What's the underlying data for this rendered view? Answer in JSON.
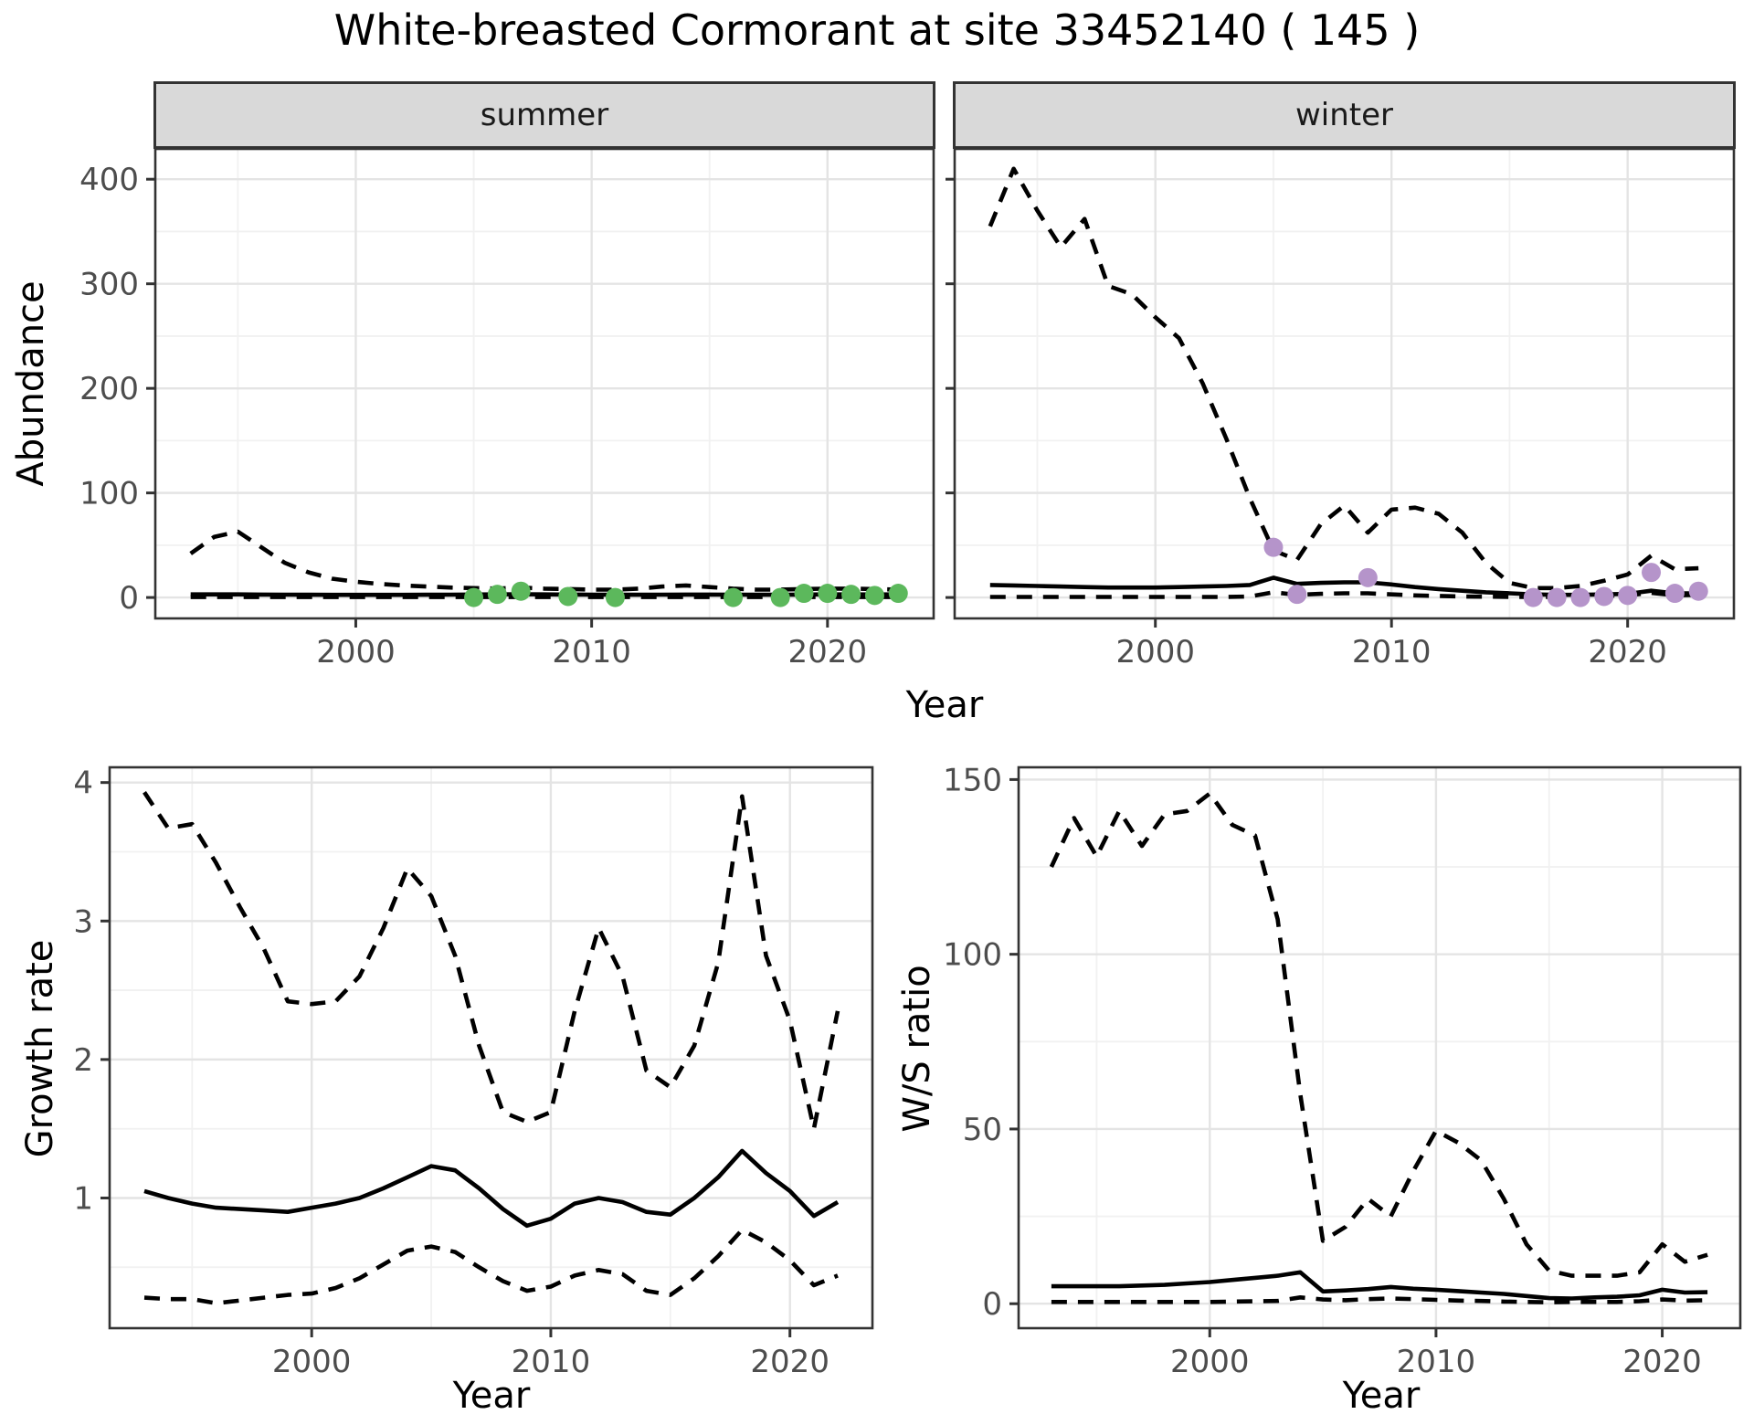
{
  "title": "White-breasted Cormorant at site 33452140 ( 145 )",
  "facets": {
    "summer": "summer",
    "winter": "winter"
  },
  "axis_labels": {
    "abundance": "Abundance",
    "year_top": "Year",
    "growth_rate": "Growth rate",
    "year_growth": "Year",
    "ws_ratio": "W/S ratio",
    "year_ws": "Year"
  },
  "colors": {
    "summer_points": "#5cb85c",
    "winter_points": "#b594ca",
    "line": "#000000",
    "strip_bg": "#d9d9d9",
    "panel_border": "#333333",
    "grid_major": "#e4e4e4",
    "grid_minor": "#f1f1f1",
    "tick_label": "#4d4d4d"
  },
  "chart_data": [
    {
      "id": "summer",
      "type": "line",
      "facet_label": "summer",
      "xlabel": "Year",
      "ylabel": "Abundance",
      "x_domain": [
        1991.5,
        2024.5
      ],
      "y_domain": [
        -20,
        429
      ],
      "x_ticks": [
        2000,
        2010,
        2020
      ],
      "x_minor_ticks": [
        1995,
        2005,
        2015
      ],
      "y_ticks": [
        0,
        100,
        200,
        300,
        400
      ],
      "y_minor_ticks": [
        50,
        150,
        250,
        350,
        450
      ],
      "show_y_tick_labels": true,
      "years": [
        1993,
        1994,
        1995,
        1996,
        1997,
        1998,
        1999,
        2000,
        2001,
        2002,
        2003,
        2004,
        2005,
        2006,
        2007,
        2008,
        2009,
        2010,
        2011,
        2012,
        2013,
        2014,
        2015,
        2016,
        2017,
        2018,
        2019,
        2020,
        2021,
        2022,
        2023
      ],
      "series": [
        {
          "name": "upper_95ci",
          "style": "dashed",
          "values": [
            42,
            58,
            63,
            48,
            33,
            24,
            18,
            15,
            13,
            11.5,
            10.5,
            9.5,
            9,
            8.5,
            9.5,
            8.5,
            8,
            7.5,
            7.5,
            8.5,
            10.5,
            11.5,
            10,
            8.5,
            7.5,
            7.5,
            8,
            8.5,
            8.5,
            8,
            7.5
          ]
        },
        {
          "name": "lower_95ci",
          "style": "dashed",
          "values": [
            0.4,
            0.4,
            0.4,
            0.4,
            0.4,
            0.4,
            0.4,
            0.4,
            0.4,
            0.4,
            0.4,
            0.4,
            0.4,
            0.4,
            0.4,
            0.4,
            0.4,
            0.4,
            0.4,
            0.4,
            0.4,
            0.4,
            0.4,
            0.4,
            0.4,
            0.4,
            0.4,
            0.4,
            0.4,
            0.4,
            0.4
          ]
        },
        {
          "name": "modelled_fit",
          "style": "solid",
          "values": [
            3,
            3,
            3,
            2.8,
            2.7,
            2.6,
            2.5,
            2.5,
            2.5,
            2.5,
            2.6,
            2.7,
            2.9,
            3,
            3.1,
            3,
            2.8,
            2.7,
            2.6,
            2.6,
            2.7,
            2.8,
            2.8,
            2.7,
            2.6,
            2.6,
            2.8,
            3,
            3,
            2.9,
            3
          ]
        },
        {
          "name": "observed_counts",
          "style": "points",
          "color": "#5cb85c",
          "obs_years": [
            2005,
            2006,
            2007,
            2009,
            2011,
            2016,
            2018,
            2019,
            2020,
            2021,
            2022,
            2023
          ],
          "obs_values": [
            0,
            3,
            6,
            1,
            0,
            0,
            0,
            4,
            4,
            3,
            2,
            4
          ]
        }
      ]
    },
    {
      "id": "winter",
      "type": "line",
      "facet_label": "winter",
      "xlabel": "Year",
      "ylabel": "Abundance",
      "x_domain": [
        1991.5,
        2024.5
      ],
      "y_domain": [
        -20,
        429
      ],
      "x_ticks": [
        2000,
        2010,
        2020
      ],
      "x_minor_ticks": [
        1995,
        2005,
        2015
      ],
      "y_ticks": [
        0,
        100,
        200,
        300,
        400
      ],
      "y_minor_ticks": [
        50,
        150,
        250,
        350,
        450
      ],
      "show_y_tick_labels": false,
      "years": [
        1993,
        1994,
        1995,
        1996,
        1997,
        1998,
        1999,
        2000,
        2001,
        2002,
        2003,
        2004,
        2005,
        2006,
        2007,
        2008,
        2009,
        2010,
        2011,
        2012,
        2013,
        2014,
        2015,
        2016,
        2017,
        2018,
        2019,
        2020,
        2021,
        2022,
        2023
      ],
      "series": [
        {
          "name": "upper_95ci",
          "style": "dashed",
          "values": [
            355,
            410,
            370,
            335,
            362,
            298,
            290,
            268,
            248,
            205,
            152,
            95,
            45,
            36,
            70,
            88,
            62,
            84,
            86,
            80,
            62,
            33,
            14,
            9,
            9,
            11,
            16,
            22,
            40,
            27,
            28
          ]
        },
        {
          "name": "lower_95ci",
          "style": "dashed",
          "values": [
            0.5,
            0.5,
            0.5,
            0.5,
            0.5,
            0.5,
            0.5,
            0.5,
            0.5,
            0.5,
            0.5,
            1,
            5,
            2.5,
            3.5,
            4,
            4,
            3,
            2,
            1.5,
            1,
            0.8,
            0.6,
            0.5,
            0.6,
            1,
            1.5,
            2,
            4.5,
            2,
            2.5
          ]
        },
        {
          "name": "modelled_fit",
          "style": "solid",
          "values": [
            12,
            11.5,
            11,
            10.5,
            10,
            9.5,
            9.5,
            9.5,
            10,
            10.5,
            11,
            12,
            19,
            13,
            14,
            14.5,
            14.5,
            12.5,
            10,
            8,
            6.5,
            5,
            4,
            3,
            2.5,
            2.5,
            3,
            3.5,
            6.5,
            4,
            4
          ]
        },
        {
          "name": "observed_counts",
          "style": "points",
          "color": "#b594ca",
          "obs_years": [
            2005,
            2006,
            2009,
            2016,
            2017,
            2018,
            2019,
            2020,
            2021,
            2022,
            2023
          ],
          "obs_values": [
            48,
            3,
            19,
            0,
            0,
            0,
            1,
            2,
            24,
            4,
            6
          ]
        }
      ]
    },
    {
      "id": "growth",
      "type": "line",
      "facet_label": "",
      "xlabel": "Year",
      "ylabel": "Growth rate",
      "x_domain": [
        1991.55,
        2023.45
      ],
      "y_domain": [
        0.06,
        4.11
      ],
      "x_ticks": [
        2000,
        2010,
        2020
      ],
      "x_minor_ticks": [
        1995,
        2005,
        2015
      ],
      "y_ticks": [
        1,
        2,
        3,
        4
      ],
      "y_minor_ticks": [
        0.5,
        1.5,
        2.5,
        3.5
      ],
      "show_y_tick_labels": true,
      "years": [
        1993,
        1994,
        1995,
        1996,
        1997,
        1998,
        1999,
        2000,
        2001,
        2002,
        2003,
        2004,
        2005,
        2006,
        2007,
        2008,
        2009,
        2010,
        2011,
        2012,
        2013,
        2014,
        2015,
        2016,
        2017,
        2018,
        2019,
        2020,
        2021,
        2022
      ],
      "series": [
        {
          "name": "upper_95ci",
          "style": "dashed",
          "values": [
            3.93,
            3.67,
            3.7,
            3.42,
            3.1,
            2.8,
            2.42,
            2.4,
            2.42,
            2.6,
            2.95,
            3.38,
            3.18,
            2.75,
            2.1,
            1.62,
            1.55,
            1.62,
            2.35,
            2.95,
            2.6,
            1.92,
            1.8,
            2.1,
            2.7,
            3.9,
            2.75,
            2.28,
            1.5,
            2.35
          ]
        },
        {
          "name": "lower_95ci",
          "style": "dashed",
          "values": [
            0.28,
            0.27,
            0.27,
            0.24,
            0.26,
            0.28,
            0.3,
            0.31,
            0.35,
            0.42,
            0.52,
            0.62,
            0.65,
            0.61,
            0.5,
            0.4,
            0.33,
            0.36,
            0.44,
            0.48,
            0.45,
            0.33,
            0.3,
            0.42,
            0.58,
            0.77,
            0.68,
            0.55,
            0.37,
            0.44
          ]
        },
        {
          "name": "modelled_fit",
          "style": "solid",
          "values": [
            1.05,
            1.0,
            0.96,
            0.93,
            0.92,
            0.91,
            0.9,
            0.93,
            0.96,
            1.0,
            1.07,
            1.15,
            1.23,
            1.2,
            1.07,
            0.92,
            0.8,
            0.85,
            0.96,
            1.0,
            0.97,
            0.9,
            0.88,
            1.0,
            1.15,
            1.34,
            1.18,
            1.05,
            0.87,
            0.97
          ]
        }
      ]
    },
    {
      "id": "ws",
      "type": "line",
      "facet_label": "",
      "xlabel": "Year",
      "ylabel": "W/S ratio",
      "x_domain": [
        1991.55,
        2023.45
      ],
      "y_domain": [
        -7,
        153.5
      ],
      "x_ticks": [
        2000,
        2010,
        2020
      ],
      "x_minor_ticks": [
        1995,
        2005,
        2015
      ],
      "y_ticks": [
        0,
        50,
        100,
        150
      ],
      "y_minor_ticks": [
        25,
        75,
        125
      ],
      "show_y_tick_labels": true,
      "years": [
        1993,
        1994,
        1995,
        1996,
        1997,
        1998,
        1999,
        2000,
        2001,
        2002,
        2003,
        2004,
        2005,
        2006,
        2007,
        2008,
        2009,
        2010,
        2011,
        2012,
        2013,
        2014,
        2015,
        2016,
        2017,
        2018,
        2019,
        2020,
        2021,
        2022
      ],
      "series": [
        {
          "name": "upper_95ci",
          "style": "dashed",
          "values": [
            125,
            139,
            128,
            141,
            131,
            140,
            141,
            146,
            137,
            134,
            110,
            60,
            18,
            22,
            30,
            25,
            38,
            49.5,
            46,
            41,
            30,
            17,
            9.5,
            8,
            8,
            8,
            9,
            17,
            12,
            14
          ]
        },
        {
          "name": "lower_95ci",
          "style": "dashed",
          "values": [
            0.5,
            0.5,
            0.5,
            0.5,
            0.5,
            0.5,
            0.5,
            0.5,
            0.6,
            0.7,
            0.8,
            1.8,
            1.2,
            1.0,
            1.3,
            1.5,
            1.3,
            1.1,
            0.9,
            0.8,
            0.6,
            0.5,
            0.4,
            0.5,
            0.5,
            0.5,
            0.7,
            1.2,
            0.9,
            1.0
          ]
        },
        {
          "name": "modelled_fit",
          "style": "solid",
          "values": [
            5,
            5,
            5,
            5,
            5.2,
            5.4,
            5.8,
            6.2,
            6.8,
            7.4,
            8,
            9,
            3.5,
            3.8,
            4.2,
            4.8,
            4.3,
            4,
            3.6,
            3.2,
            2.8,
            2.2,
            1.6,
            1.5,
            1.8,
            2,
            2.4,
            4,
            3.2,
            3.3
          ]
        }
      ]
    }
  ]
}
